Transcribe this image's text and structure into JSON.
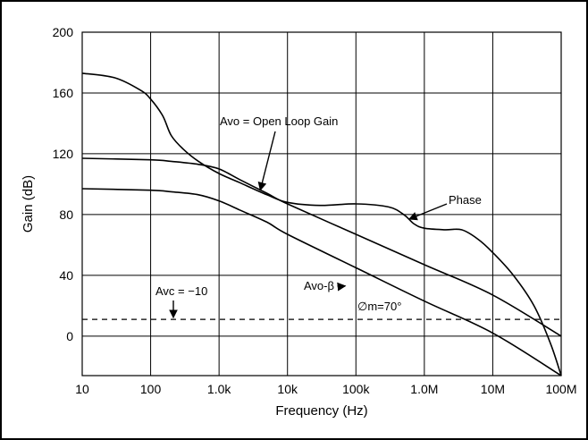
{
  "chart_data": {
    "type": "line",
    "x_scale": "log",
    "y_scale": "linear",
    "xlabel": "Frequency (Hz)",
    "ylabel": "Gain (dB)",
    "xlim": [
      10,
      100000000
    ],
    "ylim": [
      -26,
      200
    ],
    "grid": true,
    "x_ticks": [
      {
        "value": 10,
        "label": "10"
      },
      {
        "value": 100,
        "label": "100"
      },
      {
        "value": 1000,
        "label": "1.0k"
      },
      {
        "value": 10000,
        "label": "10k"
      },
      {
        "value": 100000,
        "label": "100k"
      },
      {
        "value": 1000000,
        "label": "1.0M"
      },
      {
        "value": 10000000,
        "label": "10M"
      },
      {
        "value": 100000000,
        "label": "100M"
      }
    ],
    "y_ticks": [
      {
        "value": 200,
        "label": "200"
      },
      {
        "value": 160,
        "label": "160"
      },
      {
        "value": 120,
        "label": "120"
      },
      {
        "value": 80,
        "label": "80"
      },
      {
        "value": 40,
        "label": "40"
      },
      {
        "value": 0,
        "label": "0"
      }
    ],
    "series": [
      {
        "name": "Avo = Open Loop Gain",
        "x": [
          10,
          100,
          200,
          500,
          1000,
          2000,
          5000,
          10000,
          100000,
          1000000,
          10000000,
          100000000
        ],
        "y": [
          117,
          116,
          115,
          113,
          110,
          103,
          94,
          87,
          67,
          47,
          27,
          0
        ]
      },
      {
        "name": "Avo-β",
        "x": [
          10,
          100,
          200,
          500,
          1000,
          2000,
          5000,
          10000,
          100000,
          1000000,
          10000000,
          100000000
        ],
        "y": [
          97,
          96,
          95,
          93,
          89,
          83,
          75,
          67,
          45,
          23,
          2,
          -26
        ]
      },
      {
        "name": "Phase",
        "x": [
          10,
          30,
          70,
          100,
          150,
          200,
          300,
          500,
          1000,
          2000,
          5000,
          10000,
          30000,
          100000,
          300000,
          500000,
          700000,
          1000000,
          2000000,
          3500000,
          6000000,
          10000000,
          20000000,
          40000000,
          70000000,
          100000000
        ],
        "y": [
          173,
          170,
          162,
          156,
          145,
          132,
          123,
          115,
          107,
          101,
          93,
          88,
          86,
          87,
          85,
          80,
          74,
          71,
          70,
          70,
          64,
          55,
          40,
          20,
          -5,
          -26
        ]
      },
      {
        "name": "Avc = -10",
        "style": "dashed",
        "x": [
          10,
          100000000
        ],
        "y": [
          11,
          11
        ]
      }
    ],
    "annotations": [
      {
        "text": "Avo = Open Loop Gain",
        "target": "Avo = Open Loop Gain"
      },
      {
        "text": "Phase",
        "target": "Phase"
      },
      {
        "text": "Avo-β",
        "target": "Avo-β"
      },
      {
        "text": "Avc = −10",
        "target": "Avc = -10"
      },
      {
        "text": "∅m=70°"
      }
    ]
  }
}
